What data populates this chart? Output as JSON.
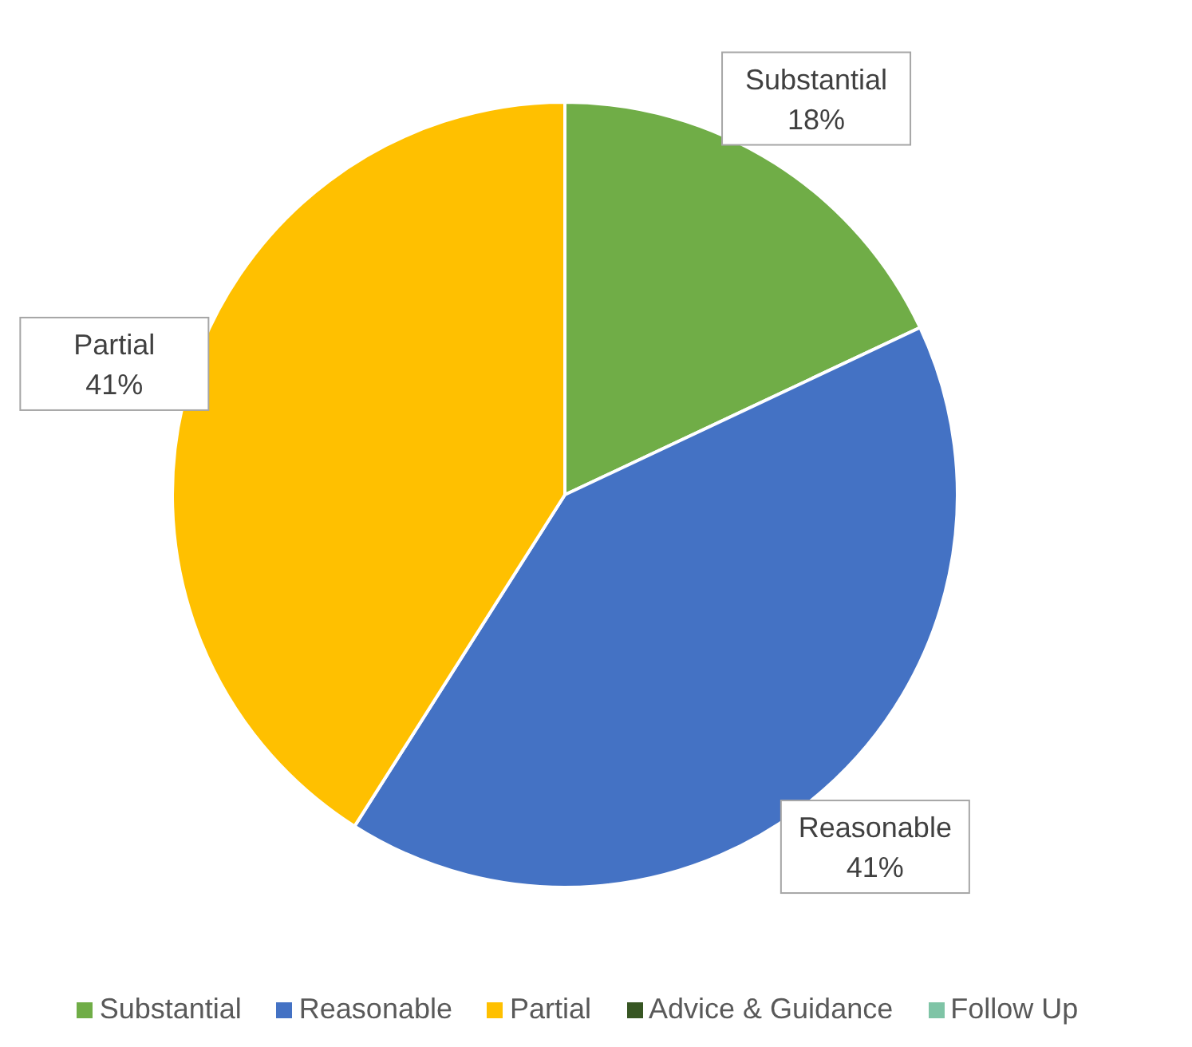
{
  "chart_data": {
    "type": "pie",
    "categories": [
      "Substantial",
      "Reasonable",
      "Partial",
      "Advice & Guidance",
      "Follow Up"
    ],
    "values": [
      18,
      41,
      41,
      0,
      0
    ],
    "colors": [
      "#70ad47",
      "#4472c4",
      "#ffc000",
      "#375623",
      "#7fc4a6"
    ],
    "value_labels": [
      "18%",
      "41%",
      "41%",
      null,
      null
    ],
    "legend": "bottom"
  }
}
